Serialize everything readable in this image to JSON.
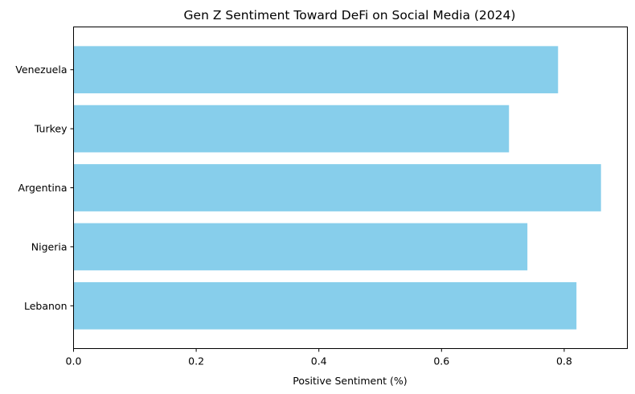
{
  "chart_data": {
    "type": "bar",
    "orientation": "horizontal",
    "title": "Gen Z Sentiment Toward DeFi on Social Media (2024)",
    "xlabel": "Positive Sentiment (%)",
    "ylabel": "",
    "categories": [
      "Lebanon",
      "Nigeria",
      "Argentina",
      "Turkey",
      "Venezuela"
    ],
    "values": [
      0.82,
      0.74,
      0.86,
      0.71,
      0.79
    ],
    "xlim": [
      0,
      0.903
    ],
    "xticks": [
      0.0,
      0.2,
      0.4,
      0.6,
      0.8
    ],
    "xtick_labels": [
      "0.0",
      "0.2",
      "0.4",
      "0.6",
      "0.8"
    ],
    "bar_color": "#87ceeb",
    "grid": false,
    "legend": "none"
  }
}
